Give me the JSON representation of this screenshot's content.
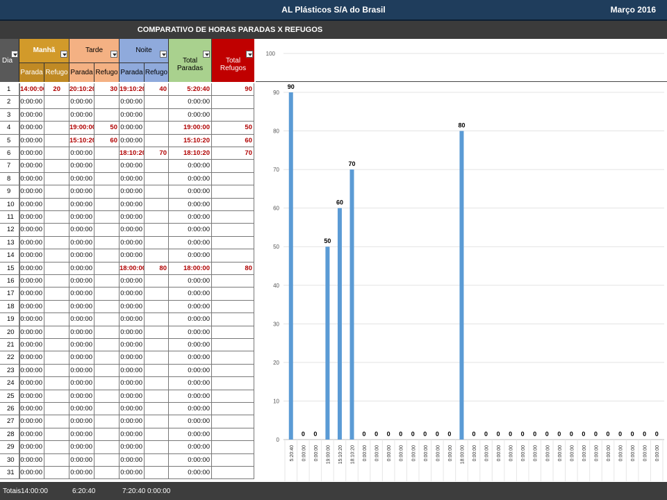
{
  "header": {
    "company": "AL Plásticos S/A do Brasil",
    "month": "Março 2016"
  },
  "subheader": {
    "title": "COMPARATIVO DE HORAS  PARADAS X REFUGOS"
  },
  "table": {
    "col_dia": "Dia",
    "groups": {
      "manha": "Manhã",
      "tarde": "Tarde",
      "noite": "Noite",
      "total_paradas": "Total Paradas",
      "total_refugos": "Total Refugos"
    },
    "sub": {
      "parada": "Parada",
      "refugo": "Refugo"
    },
    "colors": {
      "manha": "#d29a2a",
      "tarde": "#f4b183",
      "noite": "#8faadc",
      "total_paradas": "#a9d18e",
      "total_refugos": "#c00000",
      "red_text": "#b00000"
    },
    "rows": [
      {
        "dia": "1",
        "mp": "14:00:00",
        "mr": "20",
        "tp": "20:10:20",
        "tr": "30",
        "np": "19:10:20",
        "nr": "40",
        "tot": "5:20:40",
        "ref": "90",
        "hl": [
          "mp",
          "tp",
          "np",
          "tot"
        ]
      },
      {
        "dia": "2",
        "mp": "0:00:00",
        "mr": "",
        "tp": "0:00:00",
        "tr": "",
        "np": "0:00:00",
        "nr": "",
        "tot": "0:00:00",
        "ref": "",
        "hl": []
      },
      {
        "dia": "3",
        "mp": "0:00:00",
        "mr": "",
        "tp": "0:00:00",
        "tr": "",
        "np": "0:00:00",
        "nr": "",
        "tot": "0:00:00",
        "ref": "",
        "hl": []
      },
      {
        "dia": "4",
        "mp": "0:00:00",
        "mr": "",
        "tp": "19:00:00",
        "tr": "50",
        "np": "0:00:00",
        "nr": "",
        "tot": "19:00:00",
        "ref": "50",
        "hl": [
          "tp",
          "tot"
        ]
      },
      {
        "dia": "5",
        "mp": "0:00:00",
        "mr": "",
        "tp": "15:10:20",
        "tr": "60",
        "np": "0:00:00",
        "nr": "",
        "tot": "15:10:20",
        "ref": "60",
        "hl": [
          "tp",
          "tot"
        ]
      },
      {
        "dia": "6",
        "mp": "0:00:00",
        "mr": "",
        "tp": "0:00:00",
        "tr": "",
        "np": "18:10:20",
        "nr": "70",
        "tot": "18:10:20",
        "ref": "70",
        "hl": [
          "np",
          "tot"
        ]
      },
      {
        "dia": "7",
        "mp": "0:00:00",
        "mr": "",
        "tp": "0:00:00",
        "tr": "",
        "np": "0:00:00",
        "nr": "",
        "tot": "0:00:00",
        "ref": "",
        "hl": []
      },
      {
        "dia": "8",
        "mp": "0:00:00",
        "mr": "",
        "tp": "0:00:00",
        "tr": "",
        "np": "0:00:00",
        "nr": "",
        "tot": "0:00:00",
        "ref": "",
        "hl": []
      },
      {
        "dia": "9",
        "mp": "0:00:00",
        "mr": "",
        "tp": "0:00:00",
        "tr": "",
        "np": "0:00:00",
        "nr": "",
        "tot": "0:00:00",
        "ref": "",
        "hl": []
      },
      {
        "dia": "10",
        "mp": "0:00:00",
        "mr": "",
        "tp": "0:00:00",
        "tr": "",
        "np": "0:00:00",
        "nr": "",
        "tot": "0:00:00",
        "ref": "",
        "hl": []
      },
      {
        "dia": "11",
        "mp": "0:00:00",
        "mr": "",
        "tp": "0:00:00",
        "tr": "",
        "np": "0:00:00",
        "nr": "",
        "tot": "0:00:00",
        "ref": "",
        "hl": []
      },
      {
        "dia": "12",
        "mp": "0:00:00",
        "mr": "",
        "tp": "0:00:00",
        "tr": "",
        "np": "0:00:00",
        "nr": "",
        "tot": "0:00:00",
        "ref": "",
        "hl": []
      },
      {
        "dia": "13",
        "mp": "0:00:00",
        "mr": "",
        "tp": "0:00:00",
        "tr": "",
        "np": "0:00:00",
        "nr": "",
        "tot": "0:00:00",
        "ref": "",
        "hl": []
      },
      {
        "dia": "14",
        "mp": "0:00:00",
        "mr": "",
        "tp": "0:00:00",
        "tr": "",
        "np": "0:00:00",
        "nr": "",
        "tot": "0:00:00",
        "ref": "",
        "hl": []
      },
      {
        "dia": "15",
        "mp": "0:00:00",
        "mr": "",
        "tp": "0:00:00",
        "tr": "",
        "np": "18:00:00",
        "nr": "80",
        "tot": "18:00:00",
        "ref": "80",
        "hl": [
          "np",
          "tot"
        ]
      },
      {
        "dia": "16",
        "mp": "0:00:00",
        "mr": "",
        "tp": "0:00:00",
        "tr": "",
        "np": "0:00:00",
        "nr": "",
        "tot": "0:00:00",
        "ref": "",
        "hl": []
      },
      {
        "dia": "17",
        "mp": "0:00:00",
        "mr": "",
        "tp": "0:00:00",
        "tr": "",
        "np": "0:00:00",
        "nr": "",
        "tot": "0:00:00",
        "ref": "",
        "hl": []
      },
      {
        "dia": "18",
        "mp": "0:00:00",
        "mr": "",
        "tp": "0:00:00",
        "tr": "",
        "np": "0:00:00",
        "nr": "",
        "tot": "0:00:00",
        "ref": "",
        "hl": []
      },
      {
        "dia": "19",
        "mp": "0:00:00",
        "mr": "",
        "tp": "0:00:00",
        "tr": "",
        "np": "0:00:00",
        "nr": "",
        "tot": "0:00:00",
        "ref": "",
        "hl": []
      },
      {
        "dia": "20",
        "mp": "0:00:00",
        "mr": "",
        "tp": "0:00:00",
        "tr": "",
        "np": "0:00:00",
        "nr": "",
        "tot": "0:00:00",
        "ref": "",
        "hl": []
      },
      {
        "dia": "21",
        "mp": "0:00:00",
        "mr": "",
        "tp": "0:00:00",
        "tr": "",
        "np": "0:00:00",
        "nr": "",
        "tot": "0:00:00",
        "ref": "",
        "hl": []
      },
      {
        "dia": "22",
        "mp": "0:00:00",
        "mr": "",
        "tp": "0:00:00",
        "tr": "",
        "np": "0:00:00",
        "nr": "",
        "tot": "0:00:00",
        "ref": "",
        "hl": []
      },
      {
        "dia": "23",
        "mp": "0:00:00",
        "mr": "",
        "tp": "0:00:00",
        "tr": "",
        "np": "0:00:00",
        "nr": "",
        "tot": "0:00:00",
        "ref": "",
        "hl": []
      },
      {
        "dia": "24",
        "mp": "0:00:00",
        "mr": "",
        "tp": "0:00:00",
        "tr": "",
        "np": "0:00:00",
        "nr": "",
        "tot": "0:00:00",
        "ref": "",
        "hl": []
      },
      {
        "dia": "25",
        "mp": "0:00:00",
        "mr": "",
        "tp": "0:00:00",
        "tr": "",
        "np": "0:00:00",
        "nr": "",
        "tot": "0:00:00",
        "ref": "",
        "hl": []
      },
      {
        "dia": "26",
        "mp": "0:00:00",
        "mr": "",
        "tp": "0:00:00",
        "tr": "",
        "np": "0:00:00",
        "nr": "",
        "tot": "0:00:00",
        "ref": "",
        "hl": []
      },
      {
        "dia": "27",
        "mp": "0:00:00",
        "mr": "",
        "tp": "0:00:00",
        "tr": "",
        "np": "0:00:00",
        "nr": "",
        "tot": "0:00:00",
        "ref": "",
        "hl": []
      },
      {
        "dia": "28",
        "mp": "0:00:00",
        "mr": "",
        "tp": "0:00:00",
        "tr": "",
        "np": "0:00:00",
        "nr": "",
        "tot": "0:00:00",
        "ref": "",
        "hl": []
      },
      {
        "dia": "29",
        "mp": "0:00:00",
        "mr": "",
        "tp": "0:00:00",
        "tr": "",
        "np": "0:00:00",
        "nr": "",
        "tot": "0:00:00",
        "ref": "",
        "hl": []
      },
      {
        "dia": "30",
        "mp": "0:00:00",
        "mr": "",
        "tp": "0:00:00",
        "tr": "",
        "np": "0:00:00",
        "nr": "",
        "tot": "0:00:00",
        "ref": "",
        "hl": []
      },
      {
        "dia": "31",
        "mp": "0:00:00",
        "mr": "",
        "tp": "0:00:00",
        "tr": "",
        "np": "0:00:00",
        "nr": "",
        "tot": "0:00:00",
        "ref": "",
        "hl": []
      }
    ]
  },
  "footer": {
    "label": "Totais",
    "manha": "14:00:00",
    "tarde": "6:20:40",
    "noite": "7:20:40",
    "total": "0:00:00"
  },
  "chart_data": {
    "type": "bar",
    "categories": [
      "5:20:40",
      "0:00:00",
      "0:00:00",
      "19:00:00",
      "15:10:20",
      "18:10:20",
      "0:00:00",
      "0:00:00",
      "0:00:00",
      "0:00:00",
      "0:00:00",
      "0:00:00",
      "0:00:00",
      "0:00:00",
      "18:00:00",
      "0:00:00",
      "0:00:00",
      "0:00:00",
      "0:00:00",
      "0:00:00",
      "0:00:00",
      "0:00:00",
      "0:00:00",
      "0:00:00",
      "0:00:00",
      "0:00:00",
      "0:00:00",
      "0:00:00",
      "0:00:00",
      "0:00:00",
      "0:00:00"
    ],
    "values": [
      90,
      0,
      0,
      50,
      60,
      70,
      0,
      0,
      0,
      0,
      0,
      0,
      0,
      0,
      80,
      0,
      0,
      0,
      0,
      0,
      0,
      0,
      0,
      0,
      0,
      0,
      0,
      0,
      0,
      0,
      0
    ],
    "yticks": [
      0,
      10,
      20,
      30,
      40,
      50,
      60,
      70,
      80,
      90
    ],
    "top_tick": "100",
    "ylim": [
      0,
      90
    ],
    "bar_color": "#5b9bd5",
    "grid": true
  }
}
